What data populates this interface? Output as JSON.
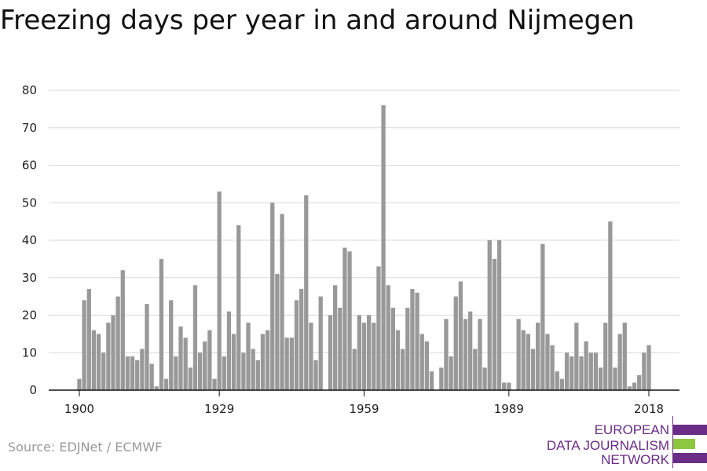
{
  "title": "Freezing days per year in and around Nijmegen",
  "source": "Source: EDJNet / ECMWF",
  "logo": {
    "lines": [
      "EUROPEAN",
      "DATA JOURNALISM",
      "NETWORK"
    ],
    "colors": {
      "purple": "#6a2c86",
      "green": "#8dc63f"
    }
  },
  "chart_data": {
    "type": "bar",
    "title": "Freezing days per year in and around Nijmegen",
    "xlabel": "",
    "ylabel": "",
    "x_start": 1900,
    "x_end": 2018,
    "xticks": [
      1900,
      1929,
      1959,
      1989,
      2018
    ],
    "yticks": [
      0,
      10,
      20,
      30,
      40,
      50,
      60,
      70,
      80
    ],
    "ylim": [
      0,
      80
    ],
    "grid": true,
    "bar_color": "#999999",
    "values": [
      3,
      24,
      27,
      16,
      15,
      10,
      18,
      20,
      25,
      32,
      9,
      9,
      8,
      11,
      23,
      7,
      1,
      35,
      3,
      24,
      9,
      17,
      14,
      6,
      28,
      10,
      13,
      16,
      3,
      53,
      9,
      21,
      15,
      44,
      10,
      18,
      11,
      8,
      15,
      16,
      50,
      31,
      47,
      14,
      14,
      24,
      27,
      52,
      18,
      8,
      25,
      0,
      20,
      28,
      22,
      38,
      37,
      11,
      20,
      18,
      20,
      18,
      33,
      76,
      28,
      22,
      16,
      11,
      22,
      27,
      26,
      15,
      13,
      5,
      0,
      6,
      19,
      9,
      25,
      29,
      19,
      21,
      11,
      19,
      6,
      40,
      35,
      40,
      2,
      2,
      0,
      19,
      16,
      15,
      11,
      18,
      39,
      15,
      12,
      5,
      3,
      10,
      9,
      18,
      9,
      13,
      10,
      10,
      6,
      18,
      45,
      6,
      15,
      18,
      1,
      2,
      4,
      10,
      12
    ]
  }
}
